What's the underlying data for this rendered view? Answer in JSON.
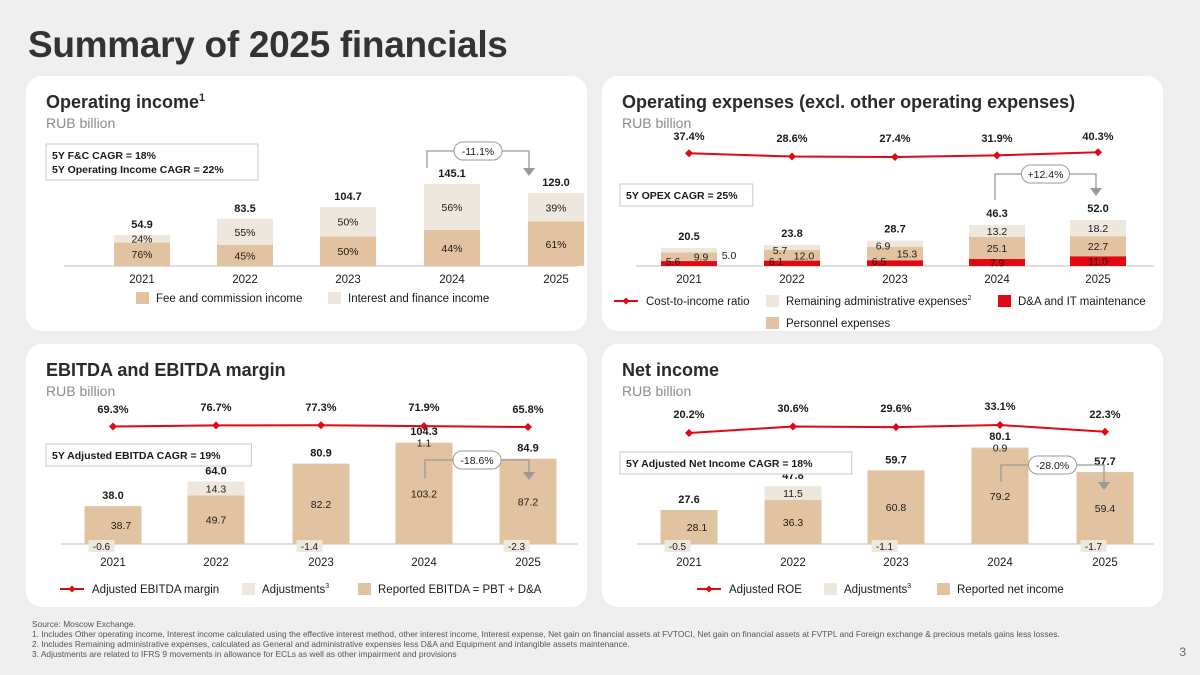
{
  "slide": {
    "title": "Summary of 2025 financials",
    "page_number": "3",
    "footnotes": [
      "Source: Moscow Exchange.",
      "1. Includes Other operating income, Interest income calculated using the effective interest method, other interest income, Interest expense, Net gain on financial assets at FVTOCI, Net gain on financial assets at FVTPL and Foreign exchange & precious metals gains less losses.",
      "2. Includes Remaining administrative expenses, calculated as General and administrative expenses less D&A and Equipment and intangible assets maintenance.",
      "3. Adjustments are related to IFRS 9 movements in allowance for ECLs as well as other impairment and provisions"
    ]
  },
  "colors": {
    "tan": "#e2c3a1",
    "light": "#ede7dd",
    "red": "#e30613",
    "axis": "#bfbfbf",
    "text": "#1a1a1a"
  },
  "chart_data": [
    {
      "id": "opinc",
      "type": "bar",
      "title": "Operating income",
      "title_sup": "1",
      "subtitle": "RUB billion",
      "categories": [
        "2021",
        "2022",
        "2023",
        "2024",
        "2025"
      ],
      "series": [
        {
          "name": "Fee and commission income",
          "values": [
            41.7,
            37.6,
            52.4,
            63.8,
            78.7
          ],
          "labels": [
            "76%",
            "45%",
            "50%",
            "44%",
            "61%"
          ]
        },
        {
          "name": "Interest and finance income",
          "values": [
            13.2,
            45.9,
            52.3,
            81.3,
            50.3
          ],
          "labels": [
            "24%",
            "55%",
            "50%",
            "56%",
            "39%"
          ]
        }
      ],
      "totals": [
        "54.9",
        "83.5",
        "104.7",
        "145.1",
        "129.0"
      ],
      "cagr_box": [
        "5Y F&C CAGR = 18%",
        "5Y Operating Income CAGR = 22%"
      ],
      "change": "-11.1%",
      "ylim": [
        0,
        145.1
      ]
    },
    {
      "id": "opex",
      "type": "bar",
      "title": "Operating expenses (excl. other operating expenses)",
      "subtitle": "RUB billion",
      "categories": [
        "2021",
        "2022",
        "2023",
        "2024",
        "2025"
      ],
      "series": [
        {
          "name": "D&A and IT maintenance",
          "values": [
            5.6,
            6.1,
            6.5,
            7.9,
            11.0
          ]
        },
        {
          "name": "Personnel expenses",
          "values": [
            9.9,
            12.0,
            15.3,
            25.1,
            22.7
          ]
        },
        {
          "name": "Remaining administrative expenses",
          "name_sup": "2",
          "values": [
            5.0,
            5.7,
            6.9,
            13.2,
            18.2
          ]
        }
      ],
      "totals": [
        "20.5",
        "23.8",
        "28.7",
        "46.3",
        "52.0"
      ],
      "line": {
        "name": "Cost-to-income ratio",
        "values": [
          37.4,
          28.6,
          27.4,
          31.9,
          40.3
        ],
        "labels": [
          "37.4%",
          "28.6%",
          "27.4%",
          "31.9%",
          "40.3%"
        ]
      },
      "cagr_box": [
        "5Y OPEX CAGR = 25%"
      ],
      "change": "+12.4%",
      "ylim": [
        0,
        52.0
      ]
    },
    {
      "id": "ebitda",
      "type": "bar",
      "title": "EBITDA and EBITDA margin",
      "subtitle": "RUB billion",
      "categories": [
        "2021",
        "2022",
        "2023",
        "2024",
        "2025"
      ],
      "series": [
        {
          "name": "Reported EBITDA = PBT + D&A",
          "values": [
            38.7,
            49.7,
            82.2,
            103.2,
            87.2
          ]
        },
        {
          "name": "Adjustments",
          "name_sup": "3",
          "values": [
            -0.6,
            14.3,
            -1.4,
            1.1,
            -2.3
          ]
        }
      ],
      "totals": [
        "38.0",
        "64.0",
        "80.9",
        "104.3",
        "84.9"
      ],
      "line": {
        "name": "Adjusted EBITDA margin",
        "values": [
          69.3,
          76.7,
          77.3,
          71.9,
          65.8
        ],
        "labels": [
          "69.3%",
          "76.7%",
          "77.3%",
          "71.9%",
          "65.8%"
        ]
      },
      "cagr_box": [
        "5Y Adjusted EBITDA CAGR = 19%"
      ],
      "change": "-18.6%",
      "ylim": [
        0,
        104.3
      ]
    },
    {
      "id": "netinc",
      "type": "bar",
      "title": "Net income",
      "subtitle": "RUB billion",
      "categories": [
        "2021",
        "2022",
        "2023",
        "2024",
        "2025"
      ],
      "series": [
        {
          "name": "Reported net income",
          "values": [
            28.1,
            36.3,
            60.8,
            79.2,
            59.4
          ]
        },
        {
          "name": "Adjustments",
          "name_sup": "3",
          "values": [
            -0.5,
            11.5,
            -1.1,
            0.9,
            -1.7
          ]
        }
      ],
      "totals": [
        "27.6",
        "47.8",
        "59.7",
        "80.1",
        "57.7"
      ],
      "line": {
        "name": "Adjusted ROE",
        "values": [
          20.2,
          30.6,
          29.6,
          33.1,
          22.3
        ],
        "labels": [
          "20.2%",
          "30.6%",
          "29.6%",
          "33.1%",
          "22.3%"
        ]
      },
      "cagr_box": [
        "5Y Adjusted Net Income CAGR = 18%"
      ],
      "change": "-28.0%",
      "ylim": [
        0,
        80.1
      ]
    }
  ]
}
